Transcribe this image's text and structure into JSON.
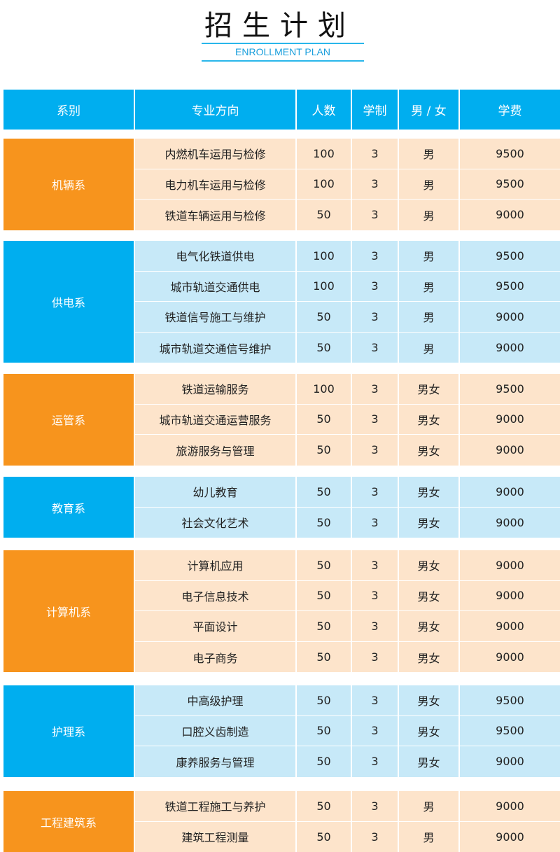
{
  "title": "招生计划",
  "subtitle": "ENROLLMENT PLAN",
  "colors": {
    "header": "#00aeef",
    "orange": "#f7941d",
    "peach": "#fde4cb",
    "blue": "#00aeef",
    "light_blue": "#c7e9f8"
  },
  "columns": [
    "系别",
    "专业方向",
    "人数",
    "学制",
    "男 / 女",
    "学费"
  ],
  "departments": [
    {
      "name": "机辆系",
      "theme": "orange",
      "rows": [
        [
          "内燃机车运用与检修",
          "100",
          "3",
          "男",
          "9500"
        ],
        [
          "电力机车运用与检修",
          "100",
          "3",
          "男",
          "9500"
        ],
        [
          "铁道车辆运用与检修",
          "50",
          "3",
          "男",
          "9000"
        ]
      ]
    },
    {
      "name": "供电系",
      "theme": "blue",
      "rows": [
        [
          "电气化铁道供电",
          "100",
          "3",
          "男",
          "9500"
        ],
        [
          "城市轨道交通供电",
          "100",
          "3",
          "男",
          "9500"
        ],
        [
          "铁道信号施工与维护",
          "50",
          "3",
          "男",
          "9000"
        ],
        [
          "城市轨道交通信号维护",
          "50",
          "3",
          "男",
          "9000"
        ]
      ]
    },
    {
      "name": "运管系",
      "theme": "orange",
      "rows": [
        [
          "铁道运输服务",
          "100",
          "3",
          "男女",
          "9500"
        ],
        [
          "城市轨道交通运营服务",
          "50",
          "3",
          "男女",
          "9000"
        ],
        [
          "旅游服务与管理",
          "50",
          "3",
          "男女",
          "9000"
        ]
      ]
    },
    {
      "name": "教育系",
      "theme": "blue",
      "rows": [
        [
          "幼儿教育",
          "50",
          "3",
          "男女",
          "9000"
        ],
        [
          "社会文化艺术",
          "50",
          "3",
          "男女",
          "9000"
        ]
      ]
    },
    {
      "name": "计算机系",
      "theme": "orange",
      "rows": [
        [
          "计算机应用",
          "50",
          "3",
          "男女",
          "9000"
        ],
        [
          "电子信息技术",
          "50",
          "3",
          "男女",
          "9000"
        ],
        [
          "平面设计",
          "50",
          "3",
          "男女",
          "9000"
        ],
        [
          "电子商务",
          "50",
          "3",
          "男女",
          "9000"
        ]
      ]
    },
    {
      "name": "护理系",
      "theme": "blue",
      "rows": [
        [
          "中高级护理",
          "50",
          "3",
          "男女",
          "9500"
        ],
        [
          "口腔义齿制造",
          "50",
          "3",
          "男女",
          "9500"
        ],
        [
          "康养服务与管理",
          "50",
          "3",
          "男女",
          "9000"
        ]
      ]
    },
    {
      "name": "工程建筑系",
      "theme": "orange",
      "rows": [
        [
          "铁道工程施工与养护",
          "50",
          "3",
          "男",
          "9000"
        ],
        [
          "建筑工程测量",
          "50",
          "3",
          "男",
          "9000"
        ]
      ]
    }
  ]
}
